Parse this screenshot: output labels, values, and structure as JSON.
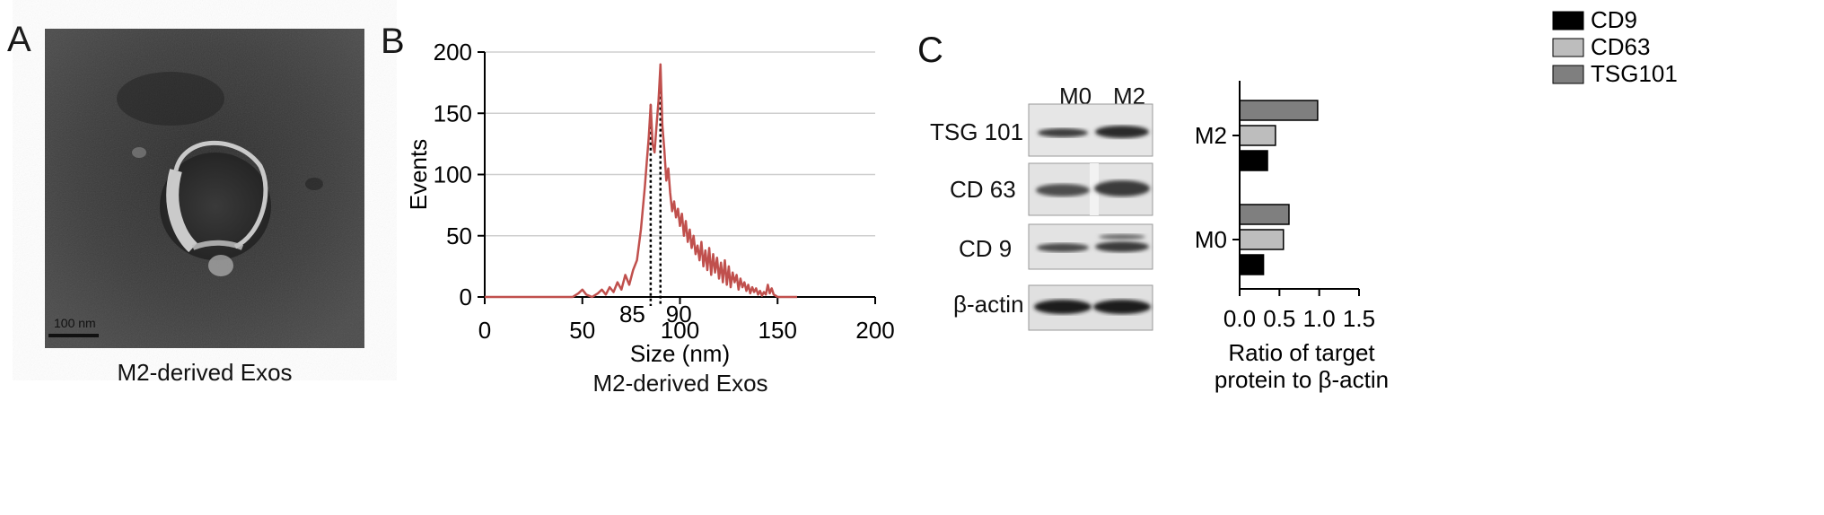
{
  "panels": {
    "a": {
      "letter": "A",
      "caption": "M2-derived Exos",
      "scale_bar_label": "100 nm"
    },
    "b": {
      "letter": "B",
      "caption": "M2-derived Exos",
      "peak_labels": [
        "85",
        "90"
      ]
    },
    "c": {
      "letter": "C",
      "blot_columns": [
        "M0",
        "M2"
      ],
      "blot_rows": [
        "TSG 101",
        "CD 63",
        "CD 9",
        "β-actin"
      ]
    }
  },
  "chart_data": [
    {
      "type": "line",
      "title": "",
      "xlabel": "Size (nm)",
      "ylabel": "Events",
      "xlim": [
        0,
        200
      ],
      "ylim": [
        0,
        200
      ],
      "xticks": [
        0,
        50,
        100,
        150,
        200
      ],
      "yticks": [
        0,
        50,
        100,
        150,
        200
      ],
      "grid": "horizontal",
      "color": "#c0504d",
      "peaks": [
        {
          "x": 85,
          "y": 157
        },
        {
          "x": 90,
          "y": 190
        }
      ],
      "x": [
        0,
        45,
        48,
        50,
        52,
        55,
        58,
        60,
        62,
        64,
        66,
        68,
        70,
        72,
        74,
        76,
        78,
        80,
        82,
        83,
        84,
        85,
        86,
        87,
        88,
        89,
        90,
        91,
        92,
        93,
        94,
        95,
        96,
        97,
        98,
        99,
        100,
        101,
        102,
        103,
        104,
        105,
        106,
        107,
        108,
        109,
        110,
        111,
        112,
        113,
        114,
        115,
        116,
        117,
        118,
        119,
        120,
        121,
        122,
        123,
        124,
        125,
        126,
        127,
        128,
        129,
        130,
        131,
        132,
        133,
        134,
        135,
        136,
        137,
        138,
        139,
        140,
        141,
        142,
        143,
        144,
        145,
        146,
        147,
        148,
        149,
        150,
        160
      ],
      "y": [
        0,
        0,
        3,
        6,
        2,
        0,
        3,
        6,
        2,
        8,
        4,
        12,
        6,
        18,
        10,
        22,
        30,
        55,
        90,
        110,
        130,
        157,
        125,
        118,
        140,
        160,
        190,
        140,
        120,
        95,
        105,
        85,
        70,
        78,
        65,
        72,
        58,
        68,
        50,
        62,
        45,
        55,
        40,
        50,
        35,
        42,
        30,
        45,
        25,
        38,
        22,
        40,
        18,
        35,
        20,
        32,
        15,
        28,
        12,
        30,
        10,
        25,
        8,
        20,
        12,
        18,
        6,
        15,
        8,
        12,
        5,
        10,
        3,
        8,
        4,
        7,
        2,
        5,
        1,
        4,
        2,
        10,
        3,
        7,
        2,
        1,
        0,
        0
      ]
    },
    {
      "type": "bar",
      "orientation": "horizontal",
      "title": "",
      "xlabel": "Ratio of target protein to β-actin",
      "ylabel": "",
      "xlim": [
        0,
        1.5
      ],
      "xticks": [
        "0.0",
        "0.5",
        "1.0",
        "1.5"
      ],
      "categories": [
        "M2",
        "M0"
      ],
      "legend_position": "top",
      "series": [
        {
          "name": "CD9",
          "color": "#000000",
          "values": [
            0.35,
            0.3
          ]
        },
        {
          "name": "CD63",
          "color": "#bdbdbd",
          "values": [
            0.45,
            0.55
          ]
        },
        {
          "name": "TSG101",
          "color": "#7f7f7f",
          "values": [
            0.98,
            0.62
          ]
        }
      ]
    }
  ]
}
